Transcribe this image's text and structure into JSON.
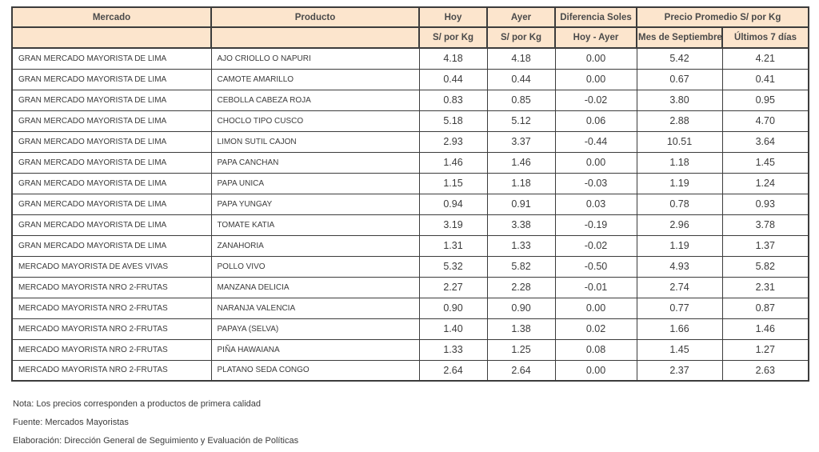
{
  "table": {
    "header": {
      "col_mercado": "Mercado",
      "col_producto": "Producto",
      "col_hoy": "Hoy",
      "col_ayer": "Ayer",
      "col_diferencia": "Diferencia Soles",
      "col_promedio": "Precio Promedio S/ por Kg",
      "sub_hoy": "S/ por Kg",
      "sub_ayer": "S/ por Kg",
      "sub_diferencia": "Hoy - Ayer",
      "sub_mes": "Mes de Septiembre",
      "sub_ultimos": "Últimos 7 días"
    },
    "rows": [
      {
        "mercado": "GRAN MERCADO MAYORISTA DE LIMA",
        "producto": "AJO CRIOLLO O NAPURI",
        "hoy": "4.18",
        "ayer": "4.18",
        "diferencia": "0.00",
        "mes": "5.42",
        "ultimos": "4.21"
      },
      {
        "mercado": "GRAN MERCADO MAYORISTA DE LIMA",
        "producto": "CAMOTE AMARILLO",
        "hoy": "0.44",
        "ayer": "0.44",
        "diferencia": "0.00",
        "mes": "0.67",
        "ultimos": "0.41"
      },
      {
        "mercado": "GRAN MERCADO MAYORISTA DE LIMA",
        "producto": "CEBOLLA CABEZA ROJA",
        "hoy": "0.83",
        "ayer": "0.85",
        "diferencia": "-0.02",
        "mes": "3.80",
        "ultimos": "0.95"
      },
      {
        "mercado": "GRAN MERCADO MAYORISTA DE LIMA",
        "producto": "CHOCLO TIPO CUSCO",
        "hoy": "5.18",
        "ayer": "5.12",
        "diferencia": "0.06",
        "mes": "2.88",
        "ultimos": "4.70"
      },
      {
        "mercado": "GRAN MERCADO MAYORISTA DE LIMA",
        "producto": "LIMON SUTIL CAJON",
        "hoy": "2.93",
        "ayer": "3.37",
        "diferencia": "-0.44",
        "mes": "10.51",
        "ultimos": "3.64"
      },
      {
        "mercado": "GRAN MERCADO MAYORISTA DE LIMA",
        "producto": "PAPA CANCHAN",
        "hoy": "1.46",
        "ayer": "1.46",
        "diferencia": "0.00",
        "mes": "1.18",
        "ultimos": "1.45"
      },
      {
        "mercado": "GRAN MERCADO MAYORISTA DE LIMA",
        "producto": "PAPA UNICA",
        "hoy": "1.15",
        "ayer": "1.18",
        "diferencia": "-0.03",
        "mes": "1.19",
        "ultimos": "1.24"
      },
      {
        "mercado": "GRAN MERCADO MAYORISTA DE LIMA",
        "producto": "PAPA YUNGAY",
        "hoy": "0.94",
        "ayer": "0.91",
        "diferencia": "0.03",
        "mes": "0.78",
        "ultimos": "0.93"
      },
      {
        "mercado": "GRAN MERCADO MAYORISTA DE LIMA",
        "producto": "TOMATE KATIA",
        "hoy": "3.19",
        "ayer": "3.38",
        "diferencia": "-0.19",
        "mes": "2.96",
        "ultimos": "3.78"
      },
      {
        "mercado": "GRAN MERCADO MAYORISTA DE LIMA",
        "producto": "ZANAHORIA",
        "hoy": "1.31",
        "ayer": "1.33",
        "diferencia": "-0.02",
        "mes": "1.19",
        "ultimos": "1.37"
      },
      {
        "mercado": "MERCADO MAYORISTA DE AVES VIVAS",
        "producto": "POLLO VIVO",
        "hoy": "5.32",
        "ayer": "5.82",
        "diferencia": "-0.50",
        "mes": "4.93",
        "ultimos": "5.82"
      },
      {
        "mercado": "MERCADO MAYORISTA NRO 2-FRUTAS",
        "producto": "MANZANA DELICIA",
        "hoy": "2.27",
        "ayer": "2.28",
        "diferencia": "-0.01",
        "mes": "2.74",
        "ultimos": "2.31"
      },
      {
        "mercado": "MERCADO MAYORISTA NRO 2-FRUTAS",
        "producto": "NARANJA VALENCIA",
        "hoy": "0.90",
        "ayer": "0.90",
        "diferencia": "0.00",
        "mes": "0.77",
        "ultimos": "0.87"
      },
      {
        "mercado": "MERCADO MAYORISTA NRO 2-FRUTAS",
        "producto": "PAPAYA (SELVA)",
        "hoy": "1.40",
        "ayer": "1.38",
        "diferencia": "0.02",
        "mes": "1.66",
        "ultimos": "1.46"
      },
      {
        "mercado": "MERCADO MAYORISTA NRO 2-FRUTAS",
        "producto": "PIÑA HAWAIANA",
        "hoy": "1.33",
        "ayer": "1.25",
        "diferencia": "0.08",
        "mes": "1.45",
        "ultimos": "1.27"
      },
      {
        "mercado": "MERCADO MAYORISTA NRO 2-FRUTAS",
        "producto": "PLATANO SEDA CONGO",
        "hoy": "2.64",
        "ayer": "2.64",
        "diferencia": "0.00",
        "mes": "2.37",
        "ultimos": "2.63"
      }
    ]
  },
  "footer": {
    "nota": "Nota: Los precios corresponden a productos de primera calidad",
    "fuente": "Fuente: Mercados Mayoristas",
    "elaboracion": "Elaboración: Dirección General de Seguimiento y Evaluación de Políticas"
  },
  "colors": {
    "header_bg": "#fce5cd",
    "border": "#3c3c3c",
    "text": "#3b3b3b"
  }
}
